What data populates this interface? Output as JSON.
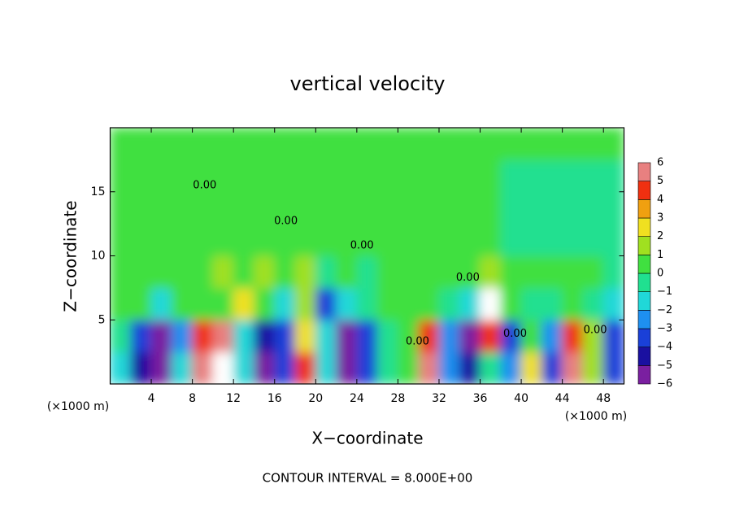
{
  "chart_data": {
    "type": "contour",
    "title": "vertical velocity",
    "xlabel": "X−coordinate",
    "ylabel": "Z−coordinate",
    "unit_label": "(×1000 m)",
    "footer": "CONTOUR INTERVAL = 8.000E+00",
    "xlim": [
      0,
      50
    ],
    "ylim": [
      0,
      20
    ],
    "xticks": [
      4,
      8,
      12,
      16,
      20,
      24,
      28,
      32,
      36,
      40,
      44,
      48
    ],
    "yticks": [
      5,
      10,
      15
    ],
    "x": [
      1,
      3,
      5,
      7,
      9,
      11,
      13,
      15,
      17,
      19,
      21,
      23,
      25,
      27,
      29,
      31,
      33,
      35,
      37,
      39,
      41,
      43,
      45,
      47,
      49
    ],
    "y": [
      1.25,
      3.75,
      6.25,
      8.75,
      11.25,
      13.75,
      16.25,
      18.75
    ],
    "z": [
      [
        -1,
        -4,
        -5,
        -1,
        6,
        7,
        -1,
        -5,
        -3,
        5,
        -1,
        -6,
        -3,
        0,
        0.5,
        6,
        -2,
        -4,
        0,
        -2,
        3,
        -3,
        6,
        2,
        -3
      ],
      [
        -0.5,
        -3,
        -5,
        -2,
        5,
        6,
        -1,
        -4,
        -3,
        3,
        -1,
        -5,
        -3,
        -0.5,
        1,
        5,
        -2,
        -5,
        5,
        -3,
        1,
        -2,
        5,
        2,
        -3
      ],
      [
        0.5,
        1,
        -1,
        1,
        1,
        1,
        3,
        1,
        -1,
        2,
        -3,
        -1,
        0,
        1,
        0.5,
        1,
        0,
        -1,
        7,
        1,
        0,
        0,
        1,
        0,
        -1
      ],
      [
        1,
        1,
        0.5,
        1,
        0.5,
        1.5,
        1,
        2,
        1,
        1.5,
        0,
        1,
        0,
        1,
        0.5,
        0.5,
        1,
        0.5,
        2,
        1,
        0.5,
        0.5,
        0.5,
        0.5,
        0
      ],
      [
        0.5,
        0.5,
        0.5,
        0.5,
        0.5,
        0.5,
        0.5,
        0.5,
        0.5,
        0.5,
        0.5,
        0.5,
        0.5,
        0.5,
        0.5,
        0.5,
        0.5,
        0.5,
        0.5,
        0,
        -0.5,
        -0.3,
        0,
        -0.3,
        -0.5
      ],
      [
        0.5,
        0.5,
        0.5,
        0.5,
        0.3,
        0.5,
        0.5,
        0.5,
        0.5,
        0.5,
        0.5,
        0.5,
        0.5,
        0.5,
        0.5,
        0.5,
        0.5,
        0.5,
        0.5,
        -0.5,
        -0.5,
        0,
        -0.5,
        -0.5,
        -0.3
      ],
      [
        0.3,
        0.5,
        0.5,
        0.5,
        0.3,
        0.5,
        0.5,
        0.5,
        0.5,
        0.3,
        0.5,
        0.5,
        0.5,
        0.5,
        0.5,
        0.5,
        0.5,
        0.5,
        0.3,
        -0.5,
        0,
        -0.5,
        -0.3,
        -0.5,
        0
      ],
      [
        0.5,
        0.3,
        0.5,
        0.5,
        0.5,
        0.5,
        0.5,
        0.5,
        0.5,
        0.5,
        0.5,
        0.5,
        0.5,
        0.3,
        0.5,
        0.5,
        0.5,
        0.5,
        0.5,
        0.3,
        0.5,
        0.3,
        0.5,
        0.5,
        0.3
      ]
    ],
    "colorbar": {
      "levels": [
        {
          "value": -6,
          "label": "−6"
        },
        {
          "value": -5,
          "label": "−5"
        },
        {
          "value": -4,
          "label": "−4"
        },
        {
          "value": -3,
          "label": "−3"
        },
        {
          "value": -2,
          "label": "−2"
        },
        {
          "value": -1,
          "label": "−1"
        },
        0,
        1,
        2,
        3,
        4,
        5,
        6
      ],
      "colors": [
        "#7a1fa0",
        "#1a10a0",
        "#1a40d8",
        "#1e90f0",
        "#20d8d8",
        "#20e090",
        "#40e040",
        "#a0e020",
        "#f0e020",
        "#f0a010",
        "#f03010",
        "#e88080"
      ],
      "outside_color": "#ffffff"
    },
    "contour_labels": [
      {
        "text": "0.00",
        "x": 9.2,
        "y": 15.5
      },
      {
        "text": "0.00",
        "x": 17.1,
        "y": 12.7
      },
      {
        "text": "0.00",
        "x": 24.5,
        "y": 10.8
      },
      {
        "text": "0.00",
        "x": 29.9,
        "y": 3.3
      },
      {
        "text": "0.00",
        "x": 34.8,
        "y": 8.3
      },
      {
        "text": "0.00",
        "x": 39.4,
        "y": 3.9
      },
      {
        "text": "0.00",
        "x": 47.2,
        "y": 4.2
      }
    ]
  }
}
